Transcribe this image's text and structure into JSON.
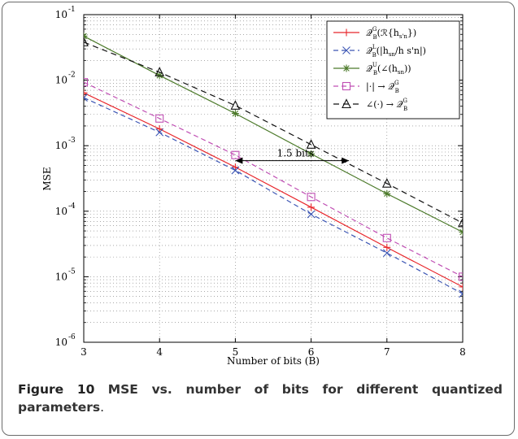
{
  "chart_data": {
    "type": "line",
    "xlabel": "Number of bits (B)",
    "ylabel": "MSE",
    "yscale": "log",
    "xlim": [
      3,
      8
    ],
    "ylim": [
      1e-06,
      0.1
    ],
    "grid": true,
    "legend_placement": "top-right",
    "x": [
      3,
      4,
      5,
      6,
      7,
      8
    ],
    "x_ticks": [
      "3",
      "4",
      "5",
      "6",
      "7",
      "8"
    ],
    "y_ticks": [
      {
        "base": "10",
        "exp": "-6",
        "value": 1e-06
      },
      {
        "base": "10",
        "exp": "-5",
        "value": 1e-05
      },
      {
        "base": "10",
        "exp": "-4",
        "value": 0.0001
      },
      {
        "base": "10",
        "exp": "-3",
        "value": 0.001
      },
      {
        "base": "10",
        "exp": "-2",
        "value": 0.01
      },
      {
        "base": "10",
        "exp": "-1",
        "value": 0.1
      }
    ],
    "series": [
      {
        "name": "Q_B^G(R{h_s'n})",
        "legend": {
          "main": "𝒬",
          "sub": "B",
          "sup": "G",
          "rest": "(ℛ{h",
          "rest_sub": "s'n",
          "tail": "})"
        },
        "color": "#e8262b",
        "dash": "",
        "marker": "plus",
        "values": [
          0.0064,
          0.0018,
          0.00047,
          0.000115,
          2.8e-05,
          7e-06
        ]
      },
      {
        "name": "Q_B^L(|h_sn/h_s'n|)",
        "legend": {
          "main": "𝒬",
          "sub": "B",
          "sup": "L",
          "rest": "(|h",
          "rest_sub": "sn",
          "tail": "/h s'n|)"
        },
        "color": "#3c56b4",
        "dash": "6,4",
        "marker": "x",
        "values": [
          0.0054,
          0.0016,
          0.00042,
          9e-05,
          2.3e-05,
          5.5e-06
        ]
      },
      {
        "name": "Q_B^U(∠(h_sn))",
        "legend": {
          "main": "𝒬",
          "sub": "B",
          "sup": "U",
          "rest": "(∠(h",
          "rest_sub": "sn",
          "tail": "))"
        },
        "color": "#4c7a2a",
        "dash": "",
        "marker": "star",
        "values": [
          0.047,
          0.0118,
          0.0031,
          0.00075,
          0.000185,
          4.8e-05
        ]
      },
      {
        "name": "|·| → Q_B^G",
        "legend": {
          "main": "|·| → 𝒬",
          "sub": "B",
          "sup": "G",
          "rest": "",
          "rest_sub": "",
          "tail": ""
        },
        "color": "#c04fb4",
        "dash": "6,4",
        "marker": "square",
        "values": [
          0.0093,
          0.0026,
          0.00072,
          0.000165,
          3.9e-05,
          1e-05
        ]
      },
      {
        "name": "∠(·) → Q_B^G",
        "legend": {
          "main": "∠(·) → 𝒬",
          "sub": "B",
          "sup": "G",
          "rest": "",
          "rest_sub": "",
          "tail": ""
        },
        "color": "#111111",
        "dash": "7,5",
        "marker": "triangle",
        "values": [
          0.038,
          0.0132,
          0.0041,
          0.00104,
          0.000265,
          6.6e-05
        ]
      }
    ],
    "annotations": [
      {
        "text": "1.5 bits",
        "type": "double-arrow",
        "x_from": 5.0,
        "x_to": 6.5,
        "y": 0.00042
      }
    ]
  },
  "caption": {
    "label": "Figure 10",
    "text": "MSE vs. number of bits for different quantized parameters",
    "end": "."
  }
}
